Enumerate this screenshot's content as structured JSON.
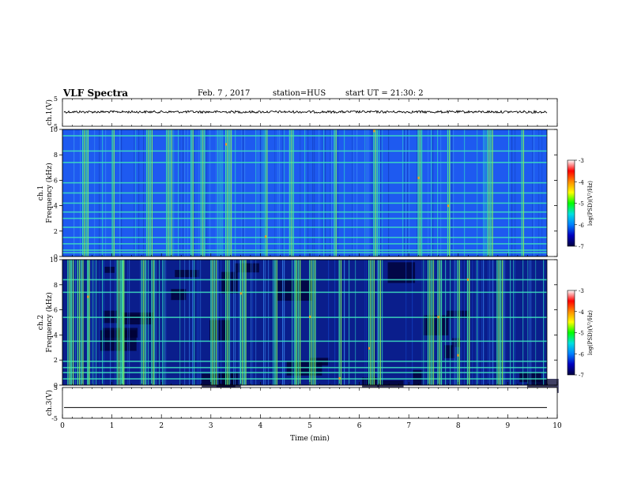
{
  "header": {
    "title": "VLF Spectra",
    "date": "Feb. 7 , 2017",
    "station": "station=HUS",
    "start": "start UT = 21:30: 2"
  },
  "chart_data": [
    {
      "type": "line",
      "panel": "ch1-waveform",
      "ylabel": "ch.1(V)",
      "ylim": [
        -5,
        5
      ],
      "yticks": [
        "5",
        "-5"
      ],
      "xlim": [
        0,
        10
      ],
      "baseline_value": 0.2,
      "description_shape": "noisy trace near 0 V"
    },
    {
      "type": "heatmap",
      "panel": "ch1-spectrogram",
      "ylabel": "ch.1\nFrequency (kHz)",
      "ylim": [
        0,
        10
      ],
      "yticks": [
        "0",
        "2",
        "4",
        "6",
        "8",
        "10"
      ],
      "xlim": [
        0,
        9.82
      ],
      "dominant_color": "#1e5af0",
      "bright_bands_khz": [
        0.3,
        0.5,
        1.0,
        1.5,
        2.3,
        3.0,
        3.5,
        4.2,
        5.0,
        5.8,
        7.4,
        8.3,
        9.5
      ],
      "bright_bursts_min": [
        0.4,
        1.0,
        1.7,
        2.1,
        2.6,
        2.8,
        3.3,
        4.1,
        4.6,
        5.5,
        6.3,
        7.2,
        7.8,
        8.6,
        9.3
      ]
    },
    {
      "type": "heatmap",
      "panel": "ch2-spectrogram",
      "ylabel": "ch.2\nFrequency (kHz)",
      "ylim": [
        0,
        10
      ],
      "yticks": [
        "0",
        "2",
        "4",
        "6",
        "8",
        "10"
      ],
      "xlim": [
        0,
        9.82
      ],
      "dominant_color": "#0a1e8c",
      "bright_bands_khz": [
        0.5,
        1.0,
        1.4,
        1.9,
        3.5,
        5.4,
        7.4,
        8.4
      ],
      "bright_bursts_min": [
        0.1,
        0.3,
        0.5,
        1.1,
        1.2,
        1.6,
        1.8,
        3.0,
        3.3,
        3.6,
        4.3,
        4.7,
        5.0,
        5.6,
        6.2,
        6.4,
        7.4,
        7.6,
        8.0,
        8.2,
        8.8
      ]
    },
    {
      "type": "line",
      "panel": "ch3-waveform",
      "ylabel": "ch.3(V)",
      "ylim": [
        -5,
        5
      ],
      "yticks": [
        "5",
        "-5"
      ],
      "xlim": [
        0,
        10
      ],
      "xticks": [
        "0",
        "1",
        "2",
        "3",
        "4",
        "5",
        "6",
        "7",
        "8",
        "9",
        "10"
      ],
      "xlabel": "Time (min)",
      "constant_value": -1.5
    }
  ],
  "colorbars": [
    {
      "label": "log(PSD)(V²/Hz)",
      "ticks": [
        "-3",
        "-4",
        "-5",
        "-6",
        "-7"
      ],
      "range": [
        -7,
        -3
      ],
      "colors": [
        "#ffffff",
        "#ff0000",
        "#ff8c00",
        "#ffff00",
        "#00ff00",
        "#00e0e0",
        "#0080ff",
        "#0000c0",
        "#000040"
      ]
    },
    {
      "label": "log(PSD)(V²/Hz)",
      "ticks": [
        "-3",
        "-4",
        "-5",
        "-6",
        "-7"
      ],
      "range": [
        -7,
        -3
      ],
      "colors": [
        "#ffffff",
        "#ff0000",
        "#ff8c00",
        "#ffff00",
        "#00ff00",
        "#00e0e0",
        "#0080ff",
        "#0000c0",
        "#000040"
      ]
    }
  ]
}
